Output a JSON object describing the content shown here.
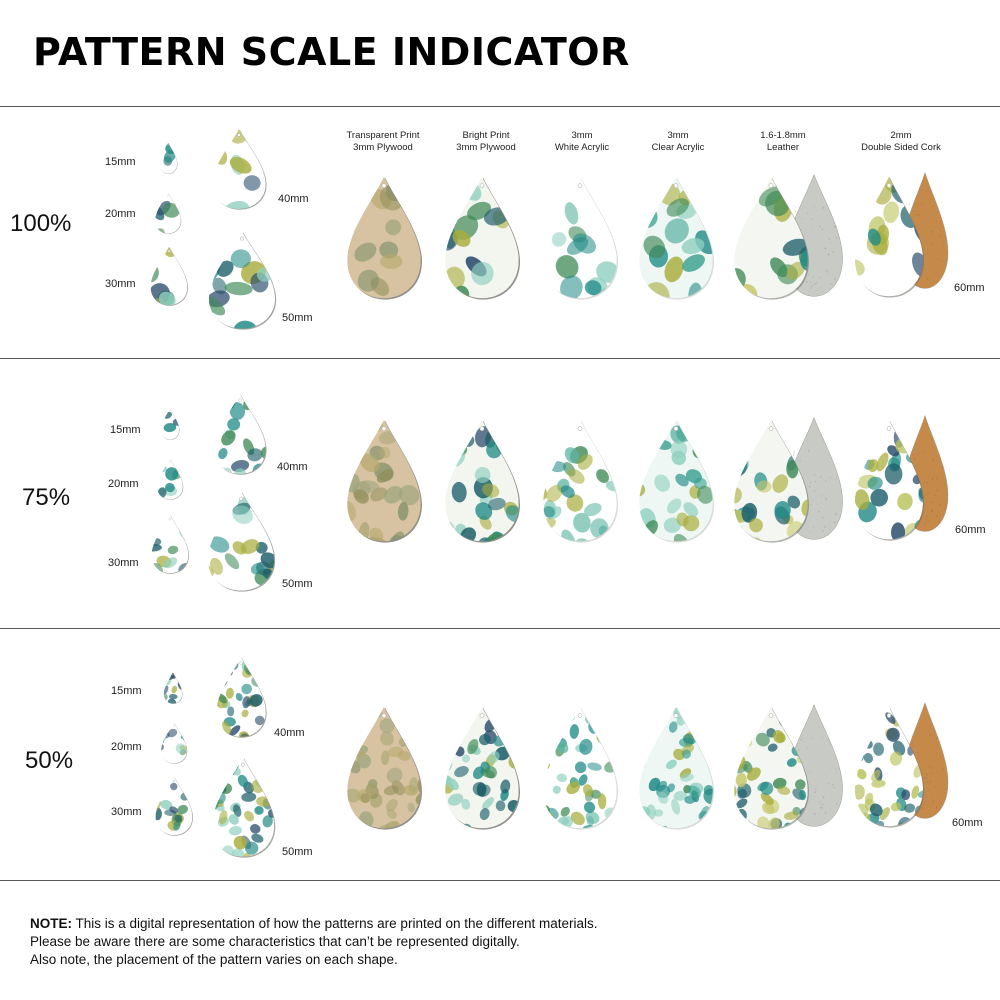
{
  "title": "PATTERN SCALE INDICATOR",
  "materials": [
    {
      "line1": "Transparent Print",
      "line2": "3mm Plywood"
    },
    {
      "line1": "Bright Print",
      "line2": "3mm Plywood"
    },
    {
      "line1": "3mm",
      "line2": "White Acrylic"
    },
    {
      "line1": "3mm",
      "line2": "Clear Acrylic"
    },
    {
      "line1": "1.6-1.8mm",
      "line2": "Leather"
    },
    {
      "line1": "2mm",
      "line2": "Double Sided Cork"
    }
  ],
  "sizes": [
    "15mm",
    "20mm",
    "30mm",
    "40mm",
    "50mm"
  ],
  "large_size": "60mm",
  "sections": [
    {
      "scale": "100%"
    },
    {
      "scale": "75%"
    },
    {
      "scale": "50%"
    }
  ],
  "note": {
    "label": "NOTE:",
    "line1": " This is a digital representation of how the patterns are printed on the different materials.",
    "line2": "Please be aware there are some characteristics that can’t be represented digitally.",
    "line3": "Also note, the placement of the pattern varies on each shape."
  },
  "colors": {
    "teal": "#1f8a86",
    "dark_teal": "#1d5f6a",
    "green": "#3f8a56",
    "olive": "#a8ad3c",
    "navy": "#2a4c6c",
    "mint": "#8fd0bf",
    "plywood": "#d7c3a1",
    "leather_back": "#c8cbc5",
    "cork": "#c58a4a"
  }
}
